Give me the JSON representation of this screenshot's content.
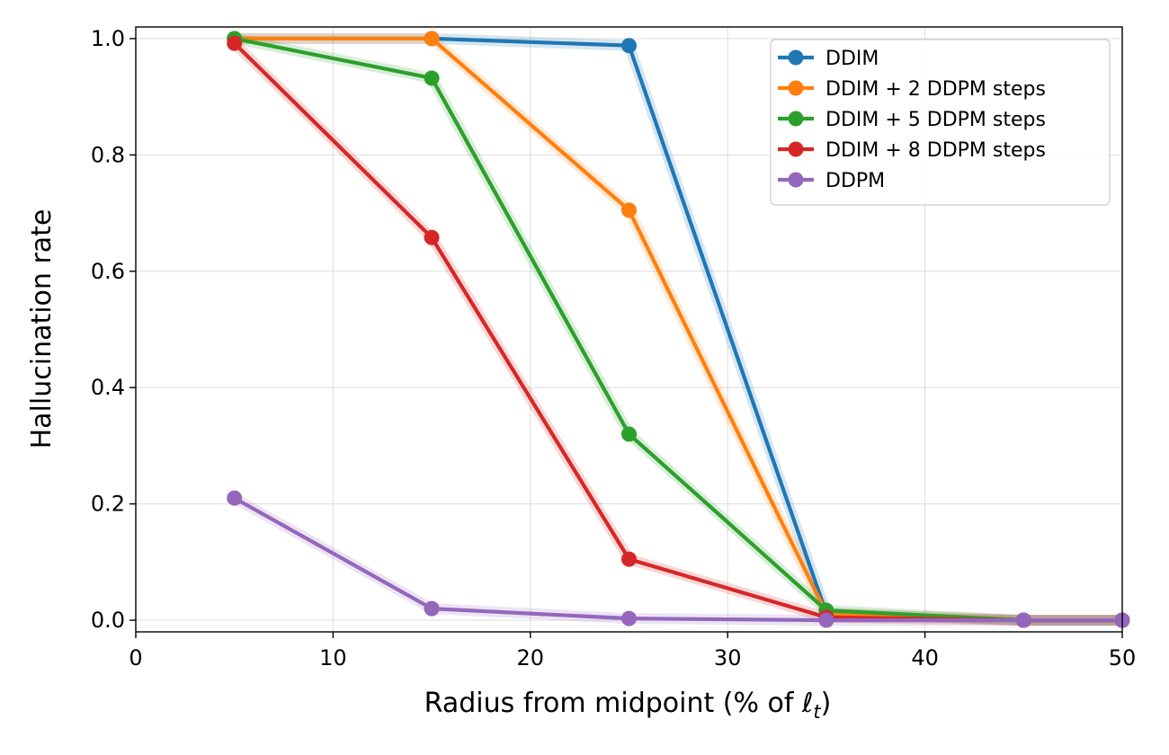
{
  "chart_data": {
    "type": "line",
    "title": "",
    "xlabel": "Radius from midpoint (% of ",
    "xlabel_symbol": "ℓ",
    "xlabel_subscript": "t",
    "xlabel_suffix": ")",
    "ylabel": "Hallucination rate",
    "xlim": [
      0,
      50
    ],
    "ylim": [
      -0.02,
      1.02
    ],
    "xticks": [
      0,
      10,
      20,
      30,
      40,
      50
    ],
    "yticks": [
      0.0,
      0.2,
      0.4,
      0.6,
      0.8,
      1.0
    ],
    "xtick_labels": [
      "0",
      "10",
      "20",
      "30",
      "40",
      "50"
    ],
    "ytick_labels": [
      "0.0",
      "0.2",
      "0.4",
      "0.6",
      "0.8",
      "1.0"
    ],
    "grid": true,
    "legend_position": "top-right",
    "x": [
      5,
      15,
      25,
      35,
      45,
      50
    ],
    "series": [
      {
        "name": "DDIM",
        "color": "#1f77b4",
        "values": [
          1.0,
          1.0,
          0.988,
          0.012,
          0.0,
          0.0
        ]
      },
      {
        "name": "DDIM + 2 DDPM steps",
        "color": "#ff7f0e",
        "values": [
          1.0,
          1.0,
          0.705,
          0.012,
          0.0,
          0.0
        ]
      },
      {
        "name": "DDIM + 5 DDPM steps",
        "color": "#2ca02c",
        "values": [
          1.0,
          0.932,
          0.32,
          0.017,
          0.0,
          0.0
        ]
      },
      {
        "name": "DDIM + 8 DDPM steps",
        "color": "#d62728",
        "values": [
          0.992,
          0.658,
          0.105,
          0.005,
          0.0,
          0.0
        ]
      },
      {
        "name": "DDPM",
        "color": "#9467bd",
        "values": [
          0.21,
          0.02,
          0.003,
          0.0,
          0.0,
          0.0
        ]
      }
    ]
  }
}
